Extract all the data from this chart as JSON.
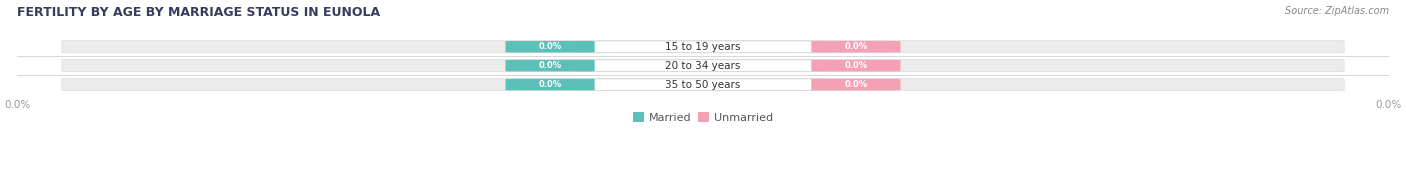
{
  "title": "FERTILITY BY AGE BY MARRIAGE STATUS IN EUNOLA",
  "source": "Source: ZipAtlas.com",
  "categories": [
    "15 to 19 years",
    "20 to 34 years",
    "35 to 50 years"
  ],
  "married_values": [
    0.0,
    0.0,
    0.0
  ],
  "unmarried_values": [
    0.0,
    0.0,
    0.0
  ],
  "married_color": "#5CBFB8",
  "unmarried_color": "#F4A0B5",
  "bar_bg_color": "#EBEBEB",
  "title_color": "#3A3A5C",
  "source_color": "#888888",
  "axis_label_color": "#999999",
  "legend_married": "Married",
  "legend_unmarried": "Unmarried",
  "figsize": [
    14.06,
    1.96
  ],
  "dpi": 100
}
